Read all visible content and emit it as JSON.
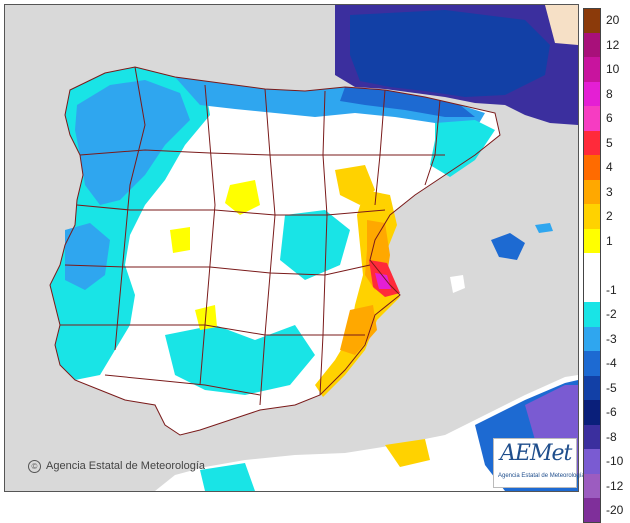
{
  "map": {
    "copyright": "Agencia Estatal de Meteorología",
    "logo_text": "AEMet",
    "logo_subtitle": "Agencia Estatal de Meteorología"
  },
  "legend": {
    "items": [
      {
        "label": "20",
        "color": "#8b3a0a"
      },
      {
        "label": "12",
        "color": "#a8107a"
      },
      {
        "label": "10",
        "color": "#c8149e"
      },
      {
        "label": "8",
        "color": "#e41fd4"
      },
      {
        "label": "6",
        "color": "#f63cc2"
      },
      {
        "label": "5",
        "color": "#ff2a3a"
      },
      {
        "label": "4",
        "color": "#ff6b00"
      },
      {
        "label": "3",
        "color": "#ffa800"
      },
      {
        "label": "2",
        "color": "#ffd200"
      },
      {
        "label": "1",
        "color": "#ffff00"
      },
      {
        "label": "",
        "color": "#ffffff"
      },
      {
        "label": "-1",
        "color": "#ffffff"
      },
      {
        "label": "-2",
        "color": "#19e4e6"
      },
      {
        "label": "-3",
        "color": "#2fa6ef"
      },
      {
        "label": "-4",
        "color": "#1d6ad2"
      },
      {
        "label": "-5",
        "color": "#1240a6"
      },
      {
        "label": "-6",
        "color": "#0a1f7a"
      },
      {
        "label": "-8",
        "color": "#3b2f9e"
      },
      {
        "label": "-10",
        "color": "#7a5bd2"
      },
      {
        "label": "-12",
        "color": "#9c5cc0"
      },
      {
        "label": "-20",
        "color": "#7f2f9a"
      }
    ]
  },
  "colors": {
    "sea": "#d9d9d9",
    "land_neutral": "#ffffff",
    "cold_light": "#19e4e6",
    "cold_mid": "#2fa6ef",
    "cold_strong": "#1d6ad2",
    "cold_deep": "#1240a6",
    "very_cold": "#3b2f9e",
    "warm_1": "#ffff00",
    "warm_2": "#ffd200",
    "warm_3": "#ffa800",
    "warm_4": "#ff6b00",
    "hot": "#ff2a3a",
    "very_hot": "#e41fd4",
    "border": "#7a1a1a"
  }
}
